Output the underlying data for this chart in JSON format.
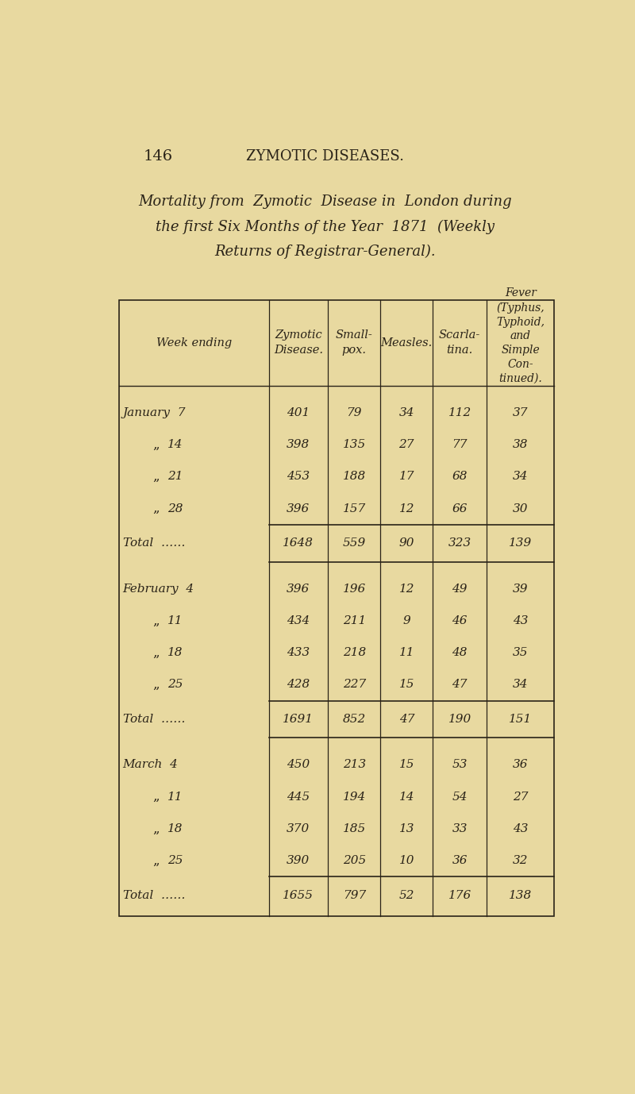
{
  "page_number": "146",
  "page_header": "ZYMOTIC DISEASES.",
  "title_lines": [
    "Mortality from  Zymotic  Disease in  London during",
    "the first Six Months of the Year  1871  (Weekly",
    "Returns of Registrar-General)."
  ],
  "sections": [
    {
      "month": "January",
      "rows": [
        {
          "week": "7",
          "zymotic": 401,
          "smallpox": 79,
          "measles": 34,
          "scarlatina": 112,
          "fever": 37
        },
        {
          "week": "14",
          "zymotic": 398,
          "smallpox": 135,
          "measles": 27,
          "scarlatina": 77,
          "fever": 38
        },
        {
          "week": "21",
          "zymotic": 453,
          "smallpox": 188,
          "measles": 17,
          "scarlatina": 68,
          "fever": 34
        },
        {
          "week": "28",
          "zymotic": 396,
          "smallpox": 157,
          "measles": 12,
          "scarlatina": 66,
          "fever": 30
        }
      ],
      "total": {
        "zymotic": 1648,
        "smallpox": 559,
        "measles": 90,
        "scarlatina": 323,
        "fever": 139
      }
    },
    {
      "month": "February",
      "rows": [
        {
          "week": "4",
          "zymotic": 396,
          "smallpox": 196,
          "measles": 12,
          "scarlatina": 49,
          "fever": 39
        },
        {
          "week": "11",
          "zymotic": 434,
          "smallpox": 211,
          "measles": 9,
          "scarlatina": 46,
          "fever": 43
        },
        {
          "week": "18",
          "zymotic": 433,
          "smallpox": 218,
          "measles": 11,
          "scarlatina": 48,
          "fever": 35
        },
        {
          "week": "25",
          "zymotic": 428,
          "smallpox": 227,
          "measles": 15,
          "scarlatina": 47,
          "fever": 34
        }
      ],
      "total": {
        "zymotic": 1691,
        "smallpox": 852,
        "measles": 47,
        "scarlatina": 190,
        "fever": 151
      }
    },
    {
      "month": "March",
      "rows": [
        {
          "week": "4",
          "zymotic": 450,
          "smallpox": 213,
          "measles": 15,
          "scarlatina": 53,
          "fever": 36
        },
        {
          "week": "11",
          "zymotic": 445,
          "smallpox": 194,
          "measles": 14,
          "scarlatina": 54,
          "fever": 27
        },
        {
          "week": "18",
          "zymotic": 370,
          "smallpox": 185,
          "measles": 13,
          "scarlatina": 33,
          "fever": 43
        },
        {
          "week": "25",
          "zymotic": 390,
          "smallpox": 205,
          "measles": 10,
          "scarlatina": 36,
          "fever": 32
        }
      ],
      "total": {
        "zymotic": 1655,
        "smallpox": 797,
        "measles": 52,
        "scarlatina": 176,
        "fever": 138
      }
    }
  ],
  "bg_color": "#e8d9a0",
  "text_color": "#2a2318",
  "line_color": "#2a2318"
}
